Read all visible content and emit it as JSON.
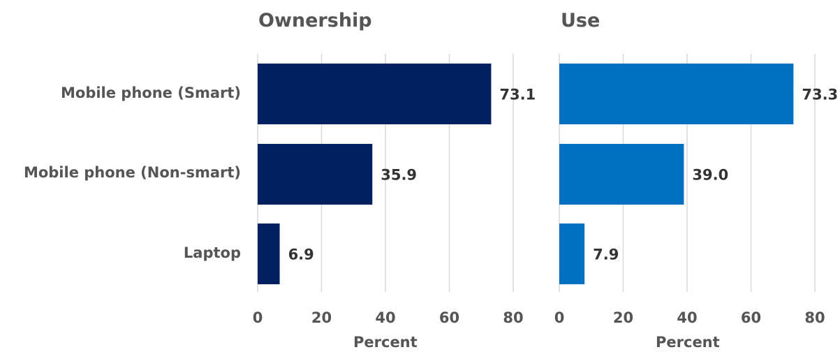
{
  "chart_data": {
    "type": "bar",
    "orientation": "horizontal",
    "categories": [
      "Mobile phone (Smart)",
      "Mobile phone (Non-smart)",
      "Laptop"
    ],
    "panels": [
      {
        "title": "Ownership",
        "xlabel": "Percent",
        "color": "#002060",
        "values": [
          73.1,
          35.9,
          6.9
        ],
        "data_labels": [
          "73.1",
          "35.9",
          "6.9"
        ]
      },
      {
        "title": "Use",
        "xlabel": "Percent",
        "color": "#0070C0",
        "values": [
          73.3,
          39.0,
          7.9
        ],
        "data_labels": [
          "73.3",
          "39.0",
          "7.9"
        ]
      }
    ],
    "xlim": [
      0,
      80
    ],
    "xticks": [
      "0",
      "20",
      "40",
      "60",
      "80"
    ],
    "grid": "vertical",
    "legend": "none"
  }
}
